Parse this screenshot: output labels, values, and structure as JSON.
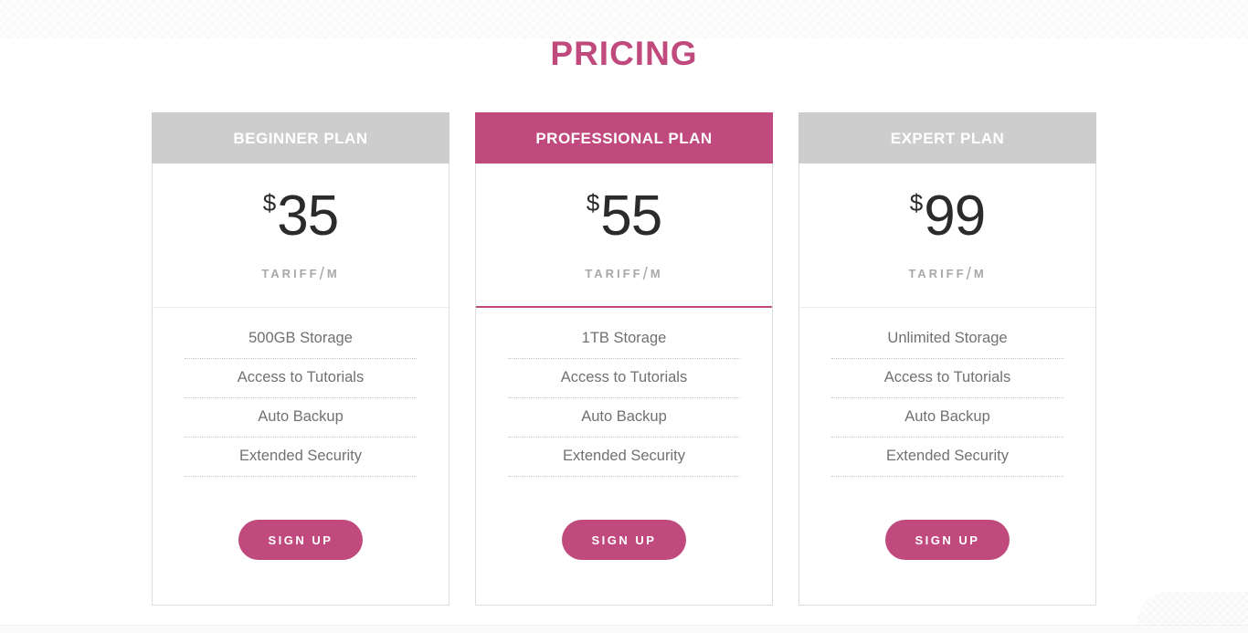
{
  "theme": {
    "accent": "#c04a7d",
    "header_gray": "#cdcdcd",
    "price_color": "#2b2b2b",
    "feature_text_color": "#717171"
  },
  "header": {
    "title": "PRICING"
  },
  "plans": [
    {
      "name": "BEGINNER PLAN",
      "currency": "$",
      "price": "35",
      "period_label": "TARIFF",
      "period_slash": "/",
      "period_unit": "M",
      "featured": false,
      "features": [
        "500GB Storage",
        "Access to Tutorials",
        "Auto Backup",
        "Extended Security"
      ],
      "cta_label": "SIGN UP"
    },
    {
      "name": "PROFESSIONAL PLAN",
      "currency": "$",
      "price": "55",
      "period_label": "TARIFF",
      "period_slash": "/",
      "period_unit": "M",
      "featured": true,
      "features": [
        "1TB Storage",
        "Access to Tutorials",
        "Auto Backup",
        "Extended Security"
      ],
      "cta_label": "SIGN UP"
    },
    {
      "name": "EXPERT PLAN",
      "currency": "$",
      "price": "99",
      "period_label": "TARIFF",
      "period_slash": "/",
      "period_unit": "M",
      "featured": false,
      "features": [
        "Unlimited Storage",
        "Access to Tutorials",
        "Auto Backup",
        "Extended Security"
      ],
      "cta_label": "SIGN UP"
    }
  ]
}
